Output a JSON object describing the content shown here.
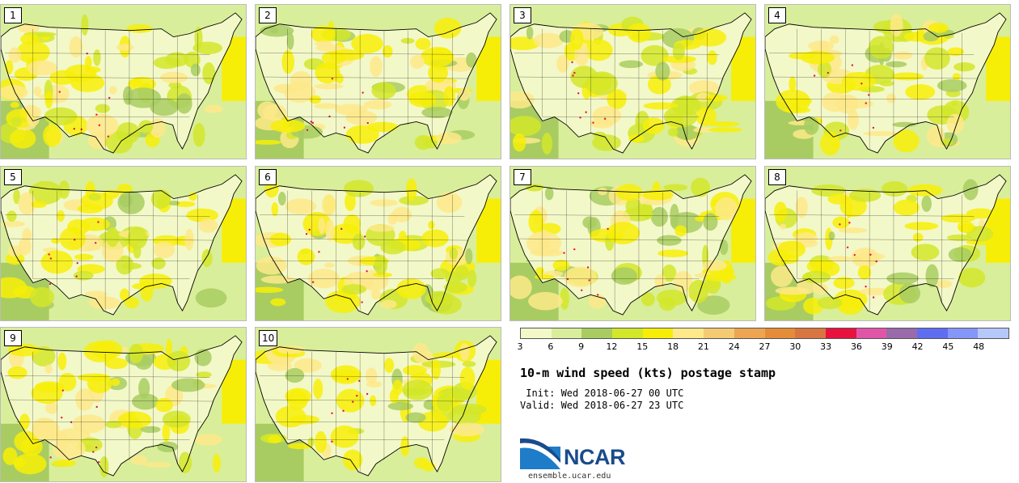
{
  "title": "10-m wind speed (kts) postage stamp",
  "init_line": " Init: Wed 2018-06-27 00 UTC",
  "valid_line": "Valid: Wed 2018-06-27 23 UTC",
  "logo": {
    "brand": "NCAR"
  },
  "site": "ensemble.ucar.edu",
  "panels": [
    "1",
    "2",
    "3",
    "4",
    "5",
    "6",
    "7",
    "8",
    "9",
    "10"
  ],
  "colorbar": {
    "ticks": [
      "3",
      "6",
      "9",
      "12",
      "15",
      "18",
      "21",
      "24",
      "27",
      "30",
      "33",
      "36",
      "39",
      "42",
      "45",
      "48"
    ],
    "colors": [
      "#f3f8c8",
      "#d9ee9a",
      "#a8cc62",
      "#d2e62a",
      "#f7ee08",
      "#fde98a",
      "#f4cb72",
      "#eda552",
      "#e58c38",
      "#d87540",
      "#e8123f",
      "#e055a8",
      "#9a6aaa",
      "#5e6ef0",
      "#8496f8",
      "#b6c8fa"
    ]
  },
  "map_colors": {
    "ocean_calm": "#d9ee9a",
    "ocean_alt": "#a8cc62",
    "land_base": "#f3f8c8",
    "mid": "#d2e62a",
    "high": "#f7ee08",
    "peak": "#fde98a",
    "gust": "#e8123f",
    "border": "#000000"
  }
}
